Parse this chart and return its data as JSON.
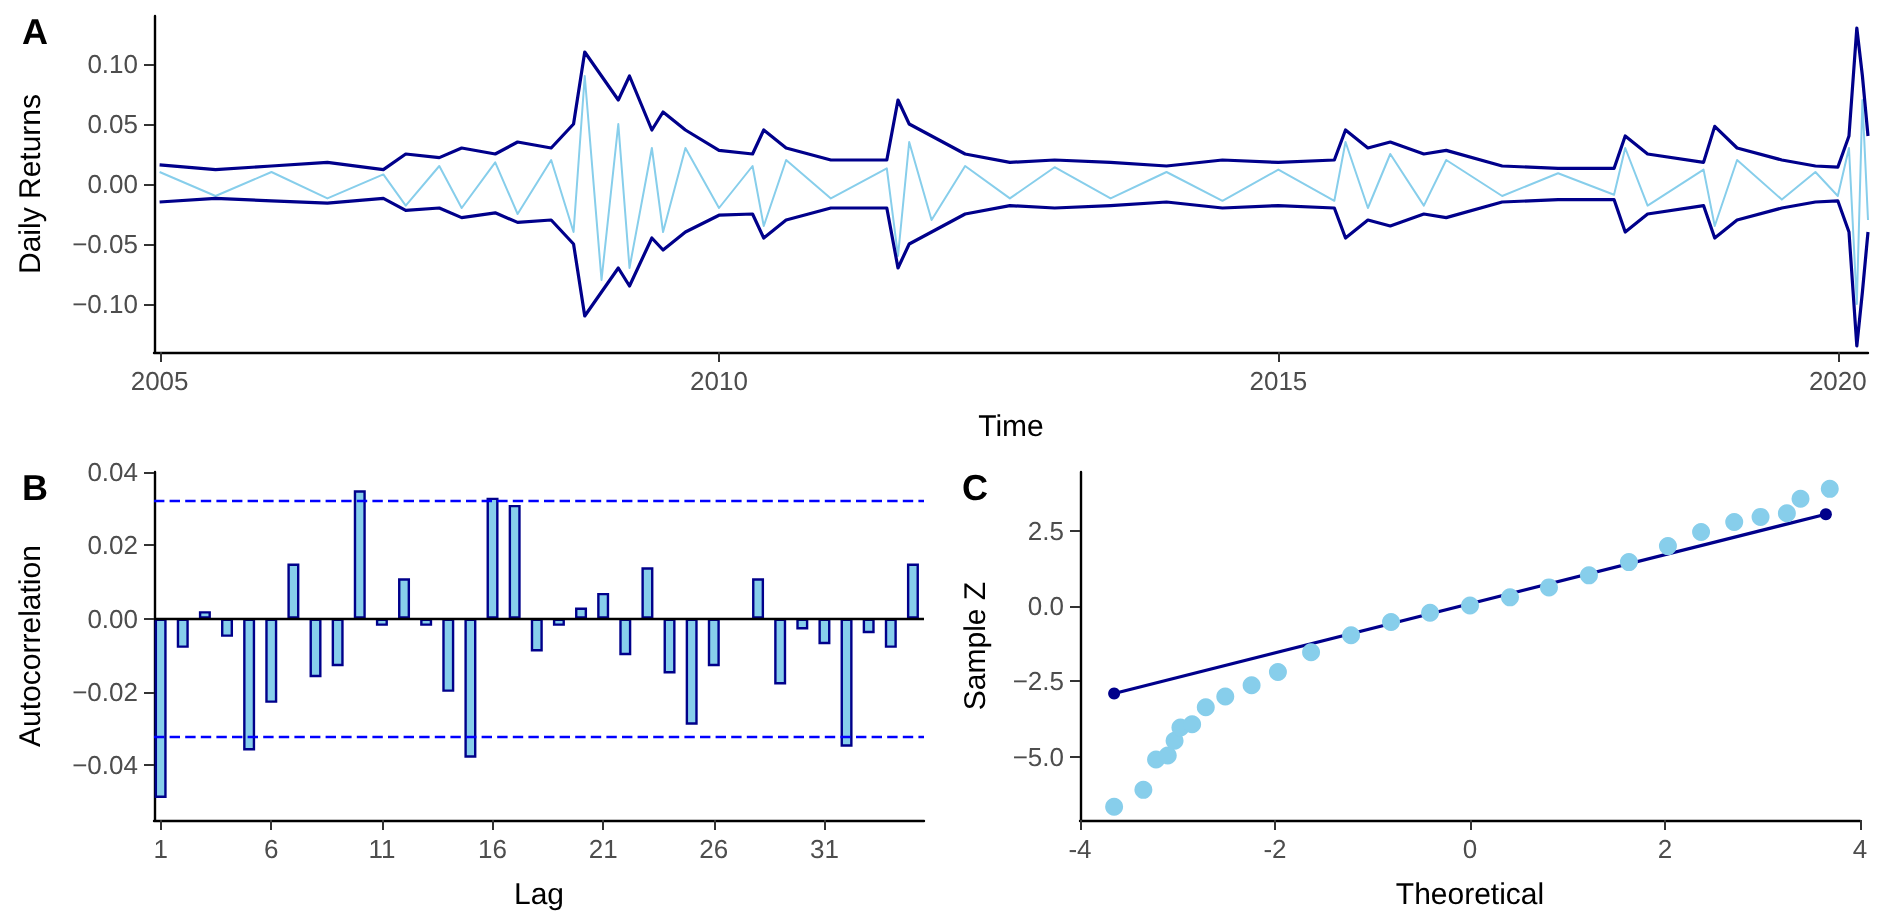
{
  "chart_data": [
    {
      "type": "line",
      "title": "A",
      "xlabel": "Time",
      "ylabel": "Daily Returns",
      "grid": false,
      "marker": "none",
      "line_style": "solid",
      "xlim": [
        2004.95,
        2020.27
      ],
      "xticks": [
        2005,
        2010,
        2015,
        2020
      ],
      "ylim": [
        -0.14,
        0.14
      ],
      "yticks": [
        {
          "value": -0.1,
          "label": "−0.10"
        },
        {
          "value": -0.05,
          "label": "−0.05"
        },
        {
          "value": 0,
          "label": "0.00"
        },
        {
          "value": 0.05,
          "label": "0.05"
        },
        {
          "value": 0.1,
          "label": "0.10"
        }
      ],
      "x": [
        2005,
        2005.5,
        2006,
        2006.5,
        2007,
        2007.2,
        2007.5,
        2007.7,
        2008,
        2008.2,
        2008.5,
        2008.7,
        2008.8,
        2008.95,
        2009.1,
        2009.2,
        2009.4,
        2009.5,
        2009.7,
        2010,
        2010.3,
        2010.4,
        2010.6,
        2011,
        2011.5,
        2011.6,
        2011.7,
        2011.9,
        2012.2,
        2012.6,
        2013,
        2013.5,
        2014,
        2014.5,
        2015,
        2015.5,
        2015.6,
        2015.8,
        2016,
        2016.3,
        2016.5,
        2017,
        2017.5,
        2018,
        2018.1,
        2018.3,
        2018.8,
        2018.9,
        2019.1,
        2019.5,
        2019.8,
        2020,
        2020.1,
        2020.17,
        2020.22,
        2020.27
      ],
      "series": [
        {
          "color": "#87ceeb",
          "values": [
            0.01,
            -0.01,
            0.01,
            -0.012,
            0.008,
            -0.018,
            0.015,
            -0.02,
            0.018,
            -0.025,
            0.02,
            -0.04,
            0.09,
            -0.08,
            0.05,
            -0.07,
            0.03,
            -0.04,
            0.03,
            -0.02,
            0.015,
            -0.035,
            0.02,
            -0.012,
            0.013,
            -0.06,
            0.035,
            -0.03,
            0.015,
            -0.012,
            0.014,
            -0.012,
            0.01,
            -0.014,
            0.012,
            -0.014,
            0.035,
            -0.02,
            0.025,
            -0.018,
            0.02,
            -0.01,
            0.009,
            -0.009,
            0.03,
            -0.018,
            0.012,
            -0.035,
            0.02,
            -0.013,
            0.01,
            -0.01,
            0.03,
            -0.1,
            0.07,
            -0.03
          ]
        },
        {
          "color": "#00008b",
          "values": [
            0.016,
            0.012,
            0.015,
            0.018,
            0.012,
            0.025,
            0.022,
            0.03,
            0.025,
            0.035,
            0.03,
            0.05,
            0.11,
            0.09,
            0.07,
            0.09,
            0.045,
            0.06,
            0.045,
            0.028,
            0.025,
            0.045,
            0.03,
            0.02,
            0.02,
            0.07,
            0.05,
            0.04,
            0.025,
            0.018,
            0.02,
            0.018,
            0.015,
            0.02,
            0.018,
            0.02,
            0.045,
            0.03,
            0.035,
            0.025,
            0.028,
            0.015,
            0.013,
            0.013,
            0.04,
            0.025,
            0.018,
            0.048,
            0.03,
            0.02,
            0.015,
            0.014,
            0.04,
            0.13,
            0.09,
            0.04
          ]
        },
        {
          "color": "#00008b",
          "values": [
            -0.015,
            -0.012,
            -0.014,
            -0.016,
            -0.012,
            -0.022,
            -0.02,
            -0.028,
            -0.024,
            -0.032,
            -0.03,
            -0.05,
            -0.11,
            -0.09,
            -0.07,
            -0.085,
            -0.045,
            -0.055,
            -0.04,
            -0.026,
            -0.025,
            -0.045,
            -0.03,
            -0.02,
            -0.02,
            -0.07,
            -0.05,
            -0.04,
            -0.025,
            -0.018,
            -0.02,
            -0.018,
            -0.015,
            -0.02,
            -0.018,
            -0.02,
            -0.045,
            -0.03,
            -0.035,
            -0.025,
            -0.028,
            -0.015,
            -0.013,
            -0.013,
            -0.04,
            -0.025,
            -0.018,
            -0.045,
            -0.03,
            -0.02,
            -0.015,
            -0.014,
            -0.04,
            -0.135,
            -0.09,
            -0.04
          ]
        }
      ]
    },
    {
      "type": "bar",
      "title": "B",
      "xlabel": "Lag",
      "ylabel": "Autocorrelation",
      "grid": false,
      "x": [
        1,
        2,
        3,
        4,
        5,
        6,
        7,
        8,
        9,
        10,
        11,
        12,
        13,
        14,
        15,
        16,
        17,
        18,
        19,
        20,
        21,
        22,
        23,
        24,
        25,
        26,
        27,
        28,
        29,
        30,
        31,
        32,
        33,
        34,
        35
      ],
      "xlim": [
        0.7,
        35.5
      ],
      "xticks": [
        1,
        6,
        11,
        16,
        21,
        26,
        31
      ],
      "ylim": [
        -0.055,
        0.04
      ],
      "yticks": [
        {
          "value": -0.04,
          "label": "−0.04"
        },
        {
          "value": -0.02,
          "label": "−0.02"
        },
        {
          "value": 0,
          "label": "0.00"
        },
        {
          "value": 0.02,
          "label": "0.02"
        },
        {
          "value": 0.04,
          "label": "0.04"
        }
      ],
      "series": [
        {
          "color": "#87ceeb",
          "values": [
            -0.049,
            -0.008,
            0.002,
            -0.005,
            -0.036,
            -0.023,
            0.015,
            -0.016,
            -0.013,
            0.035,
            -0.002,
            0.011,
            -0.002,
            -0.02,
            -0.038,
            0.033,
            0.031,
            -0.009,
            -0.002,
            0.003,
            0.007,
            -0.01,
            0.014,
            -0.015,
            -0.029,
            -0.013,
            0,
            0.011,
            -0.018,
            -0.003,
            -0.007,
            -0.035,
            -0.004,
            -0.008,
            0.015
          ]
        }
      ],
      "ref_lines": [
        {
          "axis": "y",
          "value": 0.032,
          "color": "#0000ff",
          "line_style": "dashed"
        },
        {
          "axis": "y",
          "value": -0.032,
          "color": "#0000ff",
          "line_style": "dashed"
        },
        {
          "axis": "y",
          "value": 0,
          "color": "#000000",
          "line_style": "solid"
        }
      ]
    },
    {
      "type": "scatter",
      "title": "C",
      "xlabel": "Theoretical",
      "ylabel": "Sample Z",
      "grid": false,
      "marker": "circle",
      "xlim": [
        -4,
        4
      ],
      "xticks": [
        -4,
        -2,
        0,
        2,
        4
      ],
      "ylim": [
        -7.1,
        4.45
      ],
      "yticks": [
        {
          "value": -5,
          "label": "−5.0"
        },
        {
          "value": -2.5,
          "label": "−2.5"
        },
        {
          "value": 0,
          "label": "0.0"
        },
        {
          "value": 2.5,
          "label": "2.5"
        }
      ],
      "series": [
        {
          "color": "#87ceeb",
          "x": [
            -3.65,
            -3.35,
            -3.22,
            -3.1,
            -3.03,
            -2.97,
            -2.85,
            -2.71,
            -2.51,
            -2.24,
            -1.97,
            -1.63,
            -1.22,
            -0.81,
            -0.41,
            0,
            0.41,
            0.81,
            1.22,
            1.63,
            2.03,
            2.37,
            2.71,
            2.98,
            3.25,
            3.39,
            3.69
          ],
          "values": [
            -6.66,
            -6.1,
            -5.09,
            -4.96,
            -4.47,
            -4.03,
            -3.92,
            -3.36,
            -3.0,
            -2.63,
            -2.19,
            -1.53,
            -0.97,
            -0.53,
            -0.22,
            0.02,
            0.29,
            0.62,
            1.02,
            1.46,
            1.99,
            2.46,
            2.79,
            2.96,
            3.08,
            3.56,
            3.89
          ]
        },
        {
          "type": "line",
          "color": "#00008b",
          "x": [
            -3.65,
            3.65
          ],
          "values": [
            -2.9,
            3.05
          ]
        }
      ]
    }
  ]
}
